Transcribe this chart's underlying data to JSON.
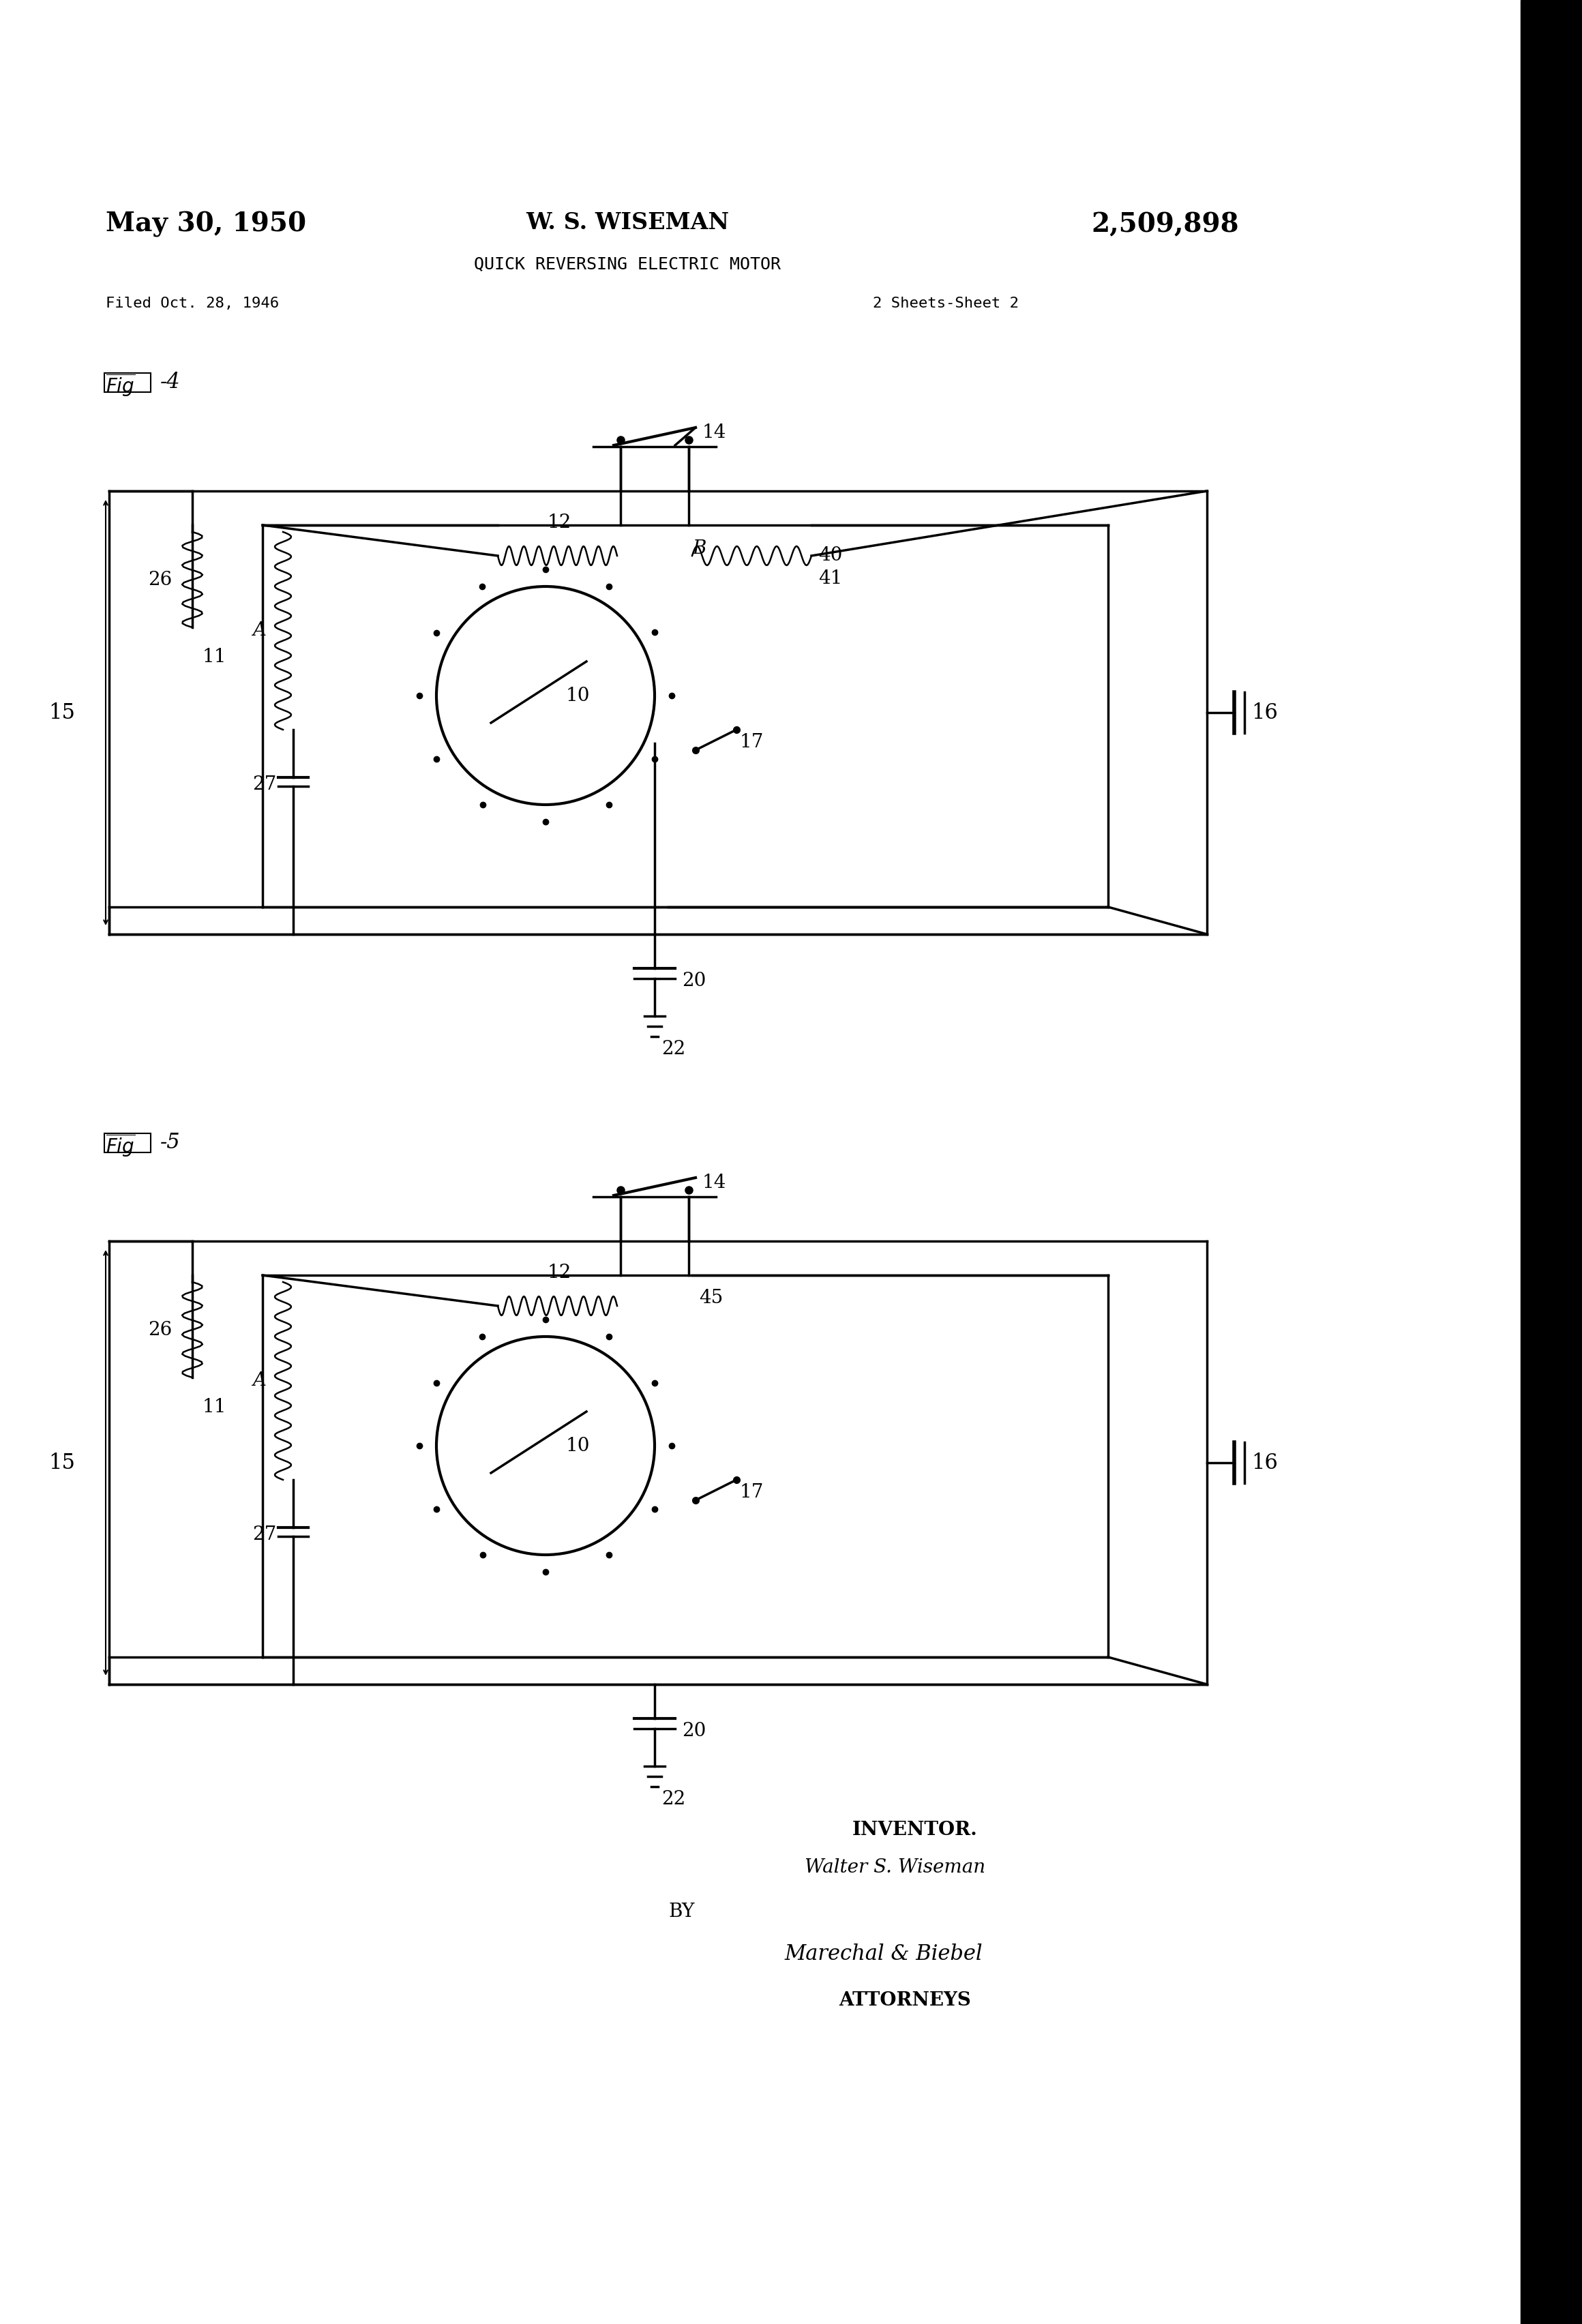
{
  "background_color": "#ffffff",
  "page_width": 23.2,
  "page_height": 34.08,
  "header": {
    "date": "May 30, 1950",
    "inventor": "W. S. WISEMAN",
    "patent_num": "2,509,898",
    "title": "QUICK REVERSING ELECTRIC MOTOR",
    "filed": "Filed Oct. 28, 1946",
    "sheets": "2 Sheets-Sheet 2"
  },
  "text_color": "#000000"
}
